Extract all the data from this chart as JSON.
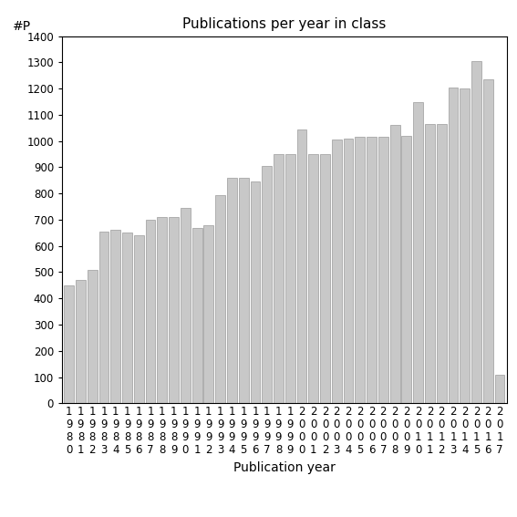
{
  "title": "Publications per year in class",
  "xlabel": "Publication year",
  "ylabel": "#P",
  "years": [
    "1980",
    "1981",
    "1982",
    "1983",
    "1984",
    "1985",
    "1986",
    "1987",
    "1988",
    "1989",
    "1990",
    "1991",
    "1992",
    "1993",
    "1994",
    "1995",
    "1996",
    "1997",
    "1998",
    "1999",
    "2000",
    "2001",
    "2002",
    "2003",
    "2004",
    "2005",
    "2006",
    "2007",
    "2008",
    "2009",
    "2010",
    "2011",
    "2012",
    "2013",
    "2014",
    "2015",
    "2016",
    "2017"
  ],
  "values": [
    450,
    470,
    510,
    655,
    660,
    650,
    640,
    700,
    710,
    710,
    745,
    670,
    680,
    795,
    860,
    860,
    845,
    905,
    950,
    950,
    1045,
    950,
    950,
    1005,
    1010,
    1015,
    1015,
    1015,
    1060,
    1020,
    1150,
    1065,
    1065,
    1205,
    1200,
    1305,
    1235,
    110
  ],
  "bar_color": "#c8c8c8",
  "bar_edge_color": "#888888",
  "ylim": [
    0,
    1400
  ],
  "yticks": [
    0,
    100,
    200,
    300,
    400,
    500,
    600,
    700,
    800,
    900,
    1000,
    1100,
    1200,
    1300,
    1400
  ],
  "bg_color": "#ffffff",
  "title_fontsize": 11,
  "axis_fontsize": 10,
  "tick_fontsize": 8.5
}
